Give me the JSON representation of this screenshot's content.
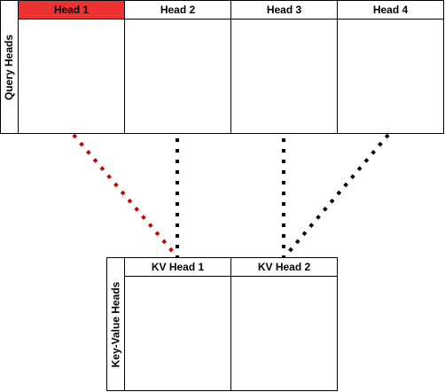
{
  "query_heads": {
    "label": "Query Heads",
    "heads": [
      {
        "label": "Head 1",
        "highlighted": true
      },
      {
        "label": "Head 2",
        "highlighted": false
      },
      {
        "label": "Head 3",
        "highlighted": false
      },
      {
        "label": "Head 4",
        "highlighted": false
      }
    ]
  },
  "kv_heads": {
    "label": "Key-Value Heads",
    "heads": [
      {
        "label": "KV Head 1"
      },
      {
        "label": "KV Head 2"
      }
    ]
  },
  "connections": [
    {
      "from": "Head 1",
      "to": "KV Head 1",
      "color": "#cc0000"
    },
    {
      "from": "Head 2",
      "to": "KV Head 1",
      "color": "#000000"
    },
    {
      "from": "Head 3",
      "to": "KV Head 2",
      "color": "#000000"
    },
    {
      "from": "Head 4",
      "to": "KV Head 2",
      "color": "#000000"
    }
  ],
  "colors": {
    "highlight": "#ee3232",
    "highlight_connector": "#cc0000",
    "border": "#000000"
  }
}
